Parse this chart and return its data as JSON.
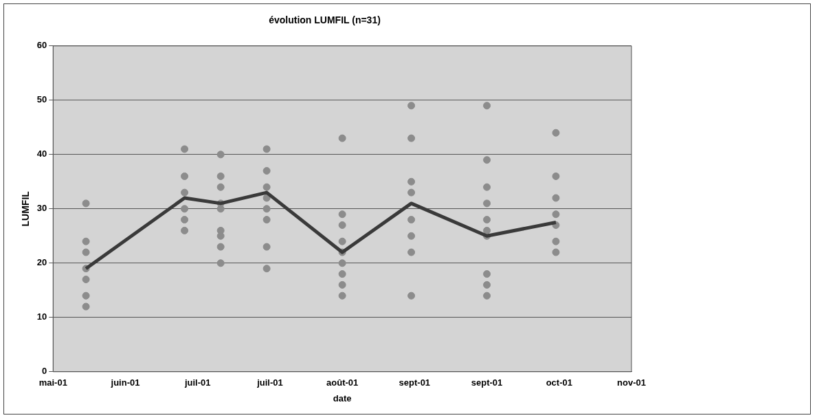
{
  "chart_data": {
    "type": "scatter",
    "title": "évolution LUMFIL (n=31)",
    "xlabel": "date",
    "ylabel": "LUMFIL",
    "xlim": [
      "2001-05-18",
      "2001-11-10"
    ],
    "xticks": [
      {
        "value": "2001-05-18",
        "label": "mai-01"
      },
      {
        "value": "2001-06-09",
        "label": "juin-01"
      },
      {
        "value": "2001-07-01",
        "label": "juil-01"
      },
      {
        "value": "2001-07-23",
        "label": "juil-01"
      },
      {
        "value": "2001-08-14",
        "label": "août-01"
      },
      {
        "value": "2001-09-05",
        "label": "sept-01"
      },
      {
        "value": "2001-09-27",
        "label": "sept-01"
      },
      {
        "value": "2001-10-19",
        "label": "oct-01"
      },
      {
        "value": "2001-11-10",
        "label": "nov-01"
      }
    ],
    "ylim": [
      0,
      60
    ],
    "yticks": [
      0,
      10,
      20,
      30,
      40,
      50,
      60
    ],
    "grid": "y",
    "marker": "circle",
    "series": [
      {
        "color": "#8c8c8c",
        "x": [
          "2001-05-28",
          "2001-05-28",
          "2001-05-28",
          "2001-05-28",
          "2001-05-28",
          "2001-05-28",
          "2001-05-28",
          "2001-06-27",
          "2001-06-27",
          "2001-06-27",
          "2001-06-27",
          "2001-06-27",
          "2001-06-27",
          "2001-07-08",
          "2001-07-08",
          "2001-07-08",
          "2001-07-08",
          "2001-07-08",
          "2001-07-08",
          "2001-07-08",
          "2001-07-08",
          "2001-07-08",
          "2001-07-22",
          "2001-07-22",
          "2001-07-22",
          "2001-07-22",
          "2001-07-22",
          "2001-07-22",
          "2001-07-22",
          "2001-07-22",
          "2001-08-14",
          "2001-08-14",
          "2001-08-14",
          "2001-08-14",
          "2001-08-14",
          "2001-08-14",
          "2001-08-14",
          "2001-08-14",
          "2001-08-14",
          "2001-09-04",
          "2001-09-04",
          "2001-09-04",
          "2001-09-04",
          "2001-09-04",
          "2001-09-04",
          "2001-09-04",
          "2001-09-04",
          "2001-09-27",
          "2001-09-27",
          "2001-09-27",
          "2001-09-27",
          "2001-09-27",
          "2001-09-27",
          "2001-09-27",
          "2001-09-27",
          "2001-09-27",
          "2001-09-27",
          "2001-10-18",
          "2001-10-18",
          "2001-10-18",
          "2001-10-18",
          "2001-10-18",
          "2001-10-18",
          "2001-10-18"
        ],
        "values": [
          31,
          24,
          22,
          19,
          17,
          14,
          12,
          41,
          36,
          33,
          30,
          28,
          26,
          40,
          36,
          34,
          31,
          30,
          26,
          25,
          23,
          20,
          41,
          37,
          34,
          32,
          30,
          28,
          23,
          19,
          43,
          29,
          27,
          24,
          22,
          20,
          18,
          16,
          14,
          49,
          43,
          35,
          33,
          28,
          25,
          22,
          14,
          49,
          39,
          34,
          31,
          28,
          26,
          25,
          18,
          16,
          14,
          44,
          36,
          32,
          29,
          27,
          24,
          22
        ]
      },
      {
        "type": "line",
        "color": "#3a3a3a",
        "marker": "none",
        "line_style": "solid",
        "x": [
          "2001-05-28",
          "2001-06-27",
          "2001-07-08",
          "2001-07-22",
          "2001-08-14",
          "2001-09-04",
          "2001-09-27",
          "2001-10-18"
        ],
        "values": [
          19,
          32,
          31,
          33,
          22,
          31,
          25,
          27.5
        ]
      }
    ]
  }
}
